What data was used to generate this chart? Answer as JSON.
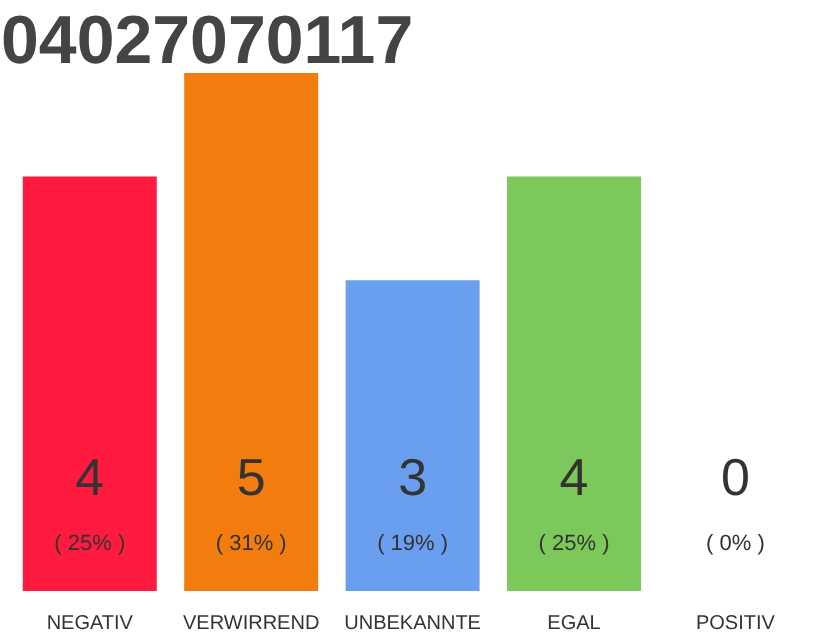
{
  "chart_data": {
    "type": "bar",
    "title": "04027070117",
    "categories": [
      "NEGATIV",
      "VERWIRREND",
      "UNBEKANNTE",
      "EGAL",
      "POSITIV"
    ],
    "values": [
      4,
      5,
      3,
      4,
      0
    ],
    "ylim": [
      0,
      5
    ],
    "tick_labels": "x",
    "colors": [
      "#ff1a40",
      "#f27c0e",
      "#6a9ff0",
      "#7dc85a",
      "#cccccc"
    ],
    "value_labels": [
      "4\n( 25% )",
      "5\n( 31% )",
      "3\n( 19% )",
      "4\n( 25% )",
      "0\n( 0% )"
    ],
    "grid": false
  }
}
